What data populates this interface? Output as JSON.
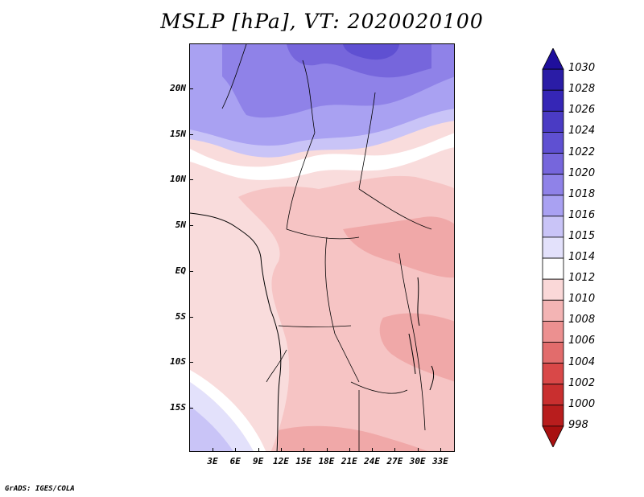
{
  "title": "MSLP [hPa], VT: 2020020100",
  "credit": "GrADS: IGES/COLA",
  "map": {
    "lat_labels": [
      "20N",
      "15N",
      "10N",
      "5N",
      "EQ",
      "5S",
      "10S",
      "15S"
    ],
    "lon_labels": [
      "3E",
      "6E",
      "9E",
      "12E",
      "15E",
      "18E",
      "21E",
      "24E",
      "27E",
      "30E",
      "33E"
    ]
  },
  "colorbar": {
    "levels": [
      "1030",
      "1028",
      "1026",
      "1024",
      "1022",
      "1020",
      "1018",
      "1016",
      "1015",
      "1014",
      "1012",
      "1010",
      "1008",
      "1006",
      "1004",
      "1002",
      "1000",
      "998"
    ],
    "colors": [
      "#1f0f9c",
      "#2a1ca6",
      "#3526b6",
      "#4a3bc4",
      "#5f50d2",
      "#7666dc",
      "#8f82e8",
      "#a9a1f2",
      "#c9c4f7",
      "#e3e1fb",
      "#ffffff",
      "#fad8d8",
      "#f3b4b4",
      "#ec9090",
      "#e26c6c",
      "#d94848",
      "#c92f2f",
      "#b81d1d",
      "#a81010"
    ]
  }
}
